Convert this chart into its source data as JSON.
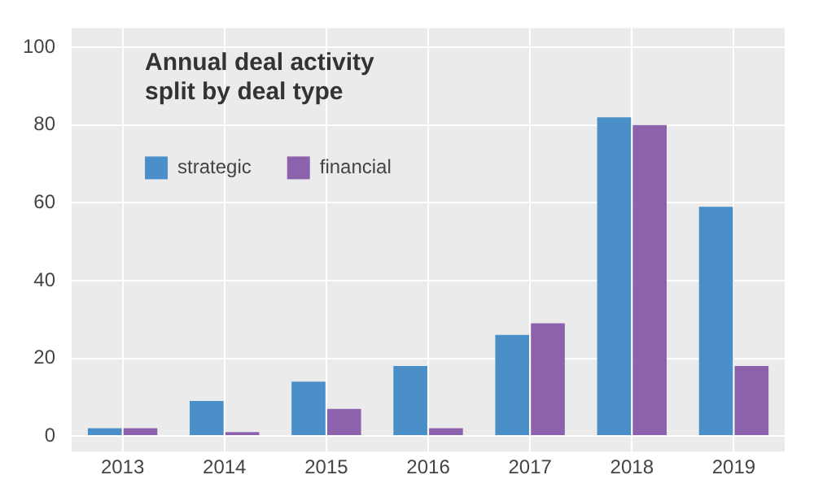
{
  "chart_data": {
    "type": "bar",
    "title": "Annual deal activity split by deal type",
    "categories": [
      "2013",
      "2014",
      "2015",
      "2016",
      "2017",
      "2018",
      "2019"
    ],
    "series": [
      {
        "name": "strategic",
        "color": "#4a8fc7",
        "values": [
          2,
          9,
          14,
          18,
          26,
          82,
          59
        ]
      },
      {
        "name": "financial",
        "color": "#8c62ad",
        "values": [
          2,
          1,
          7,
          2,
          29,
          80,
          18
        ]
      }
    ],
    "ylim": [
      -4,
      105
    ],
    "yticks": [
      0,
      20,
      40,
      60,
      80,
      100
    ],
    "grid": true,
    "legend": "top left"
  }
}
